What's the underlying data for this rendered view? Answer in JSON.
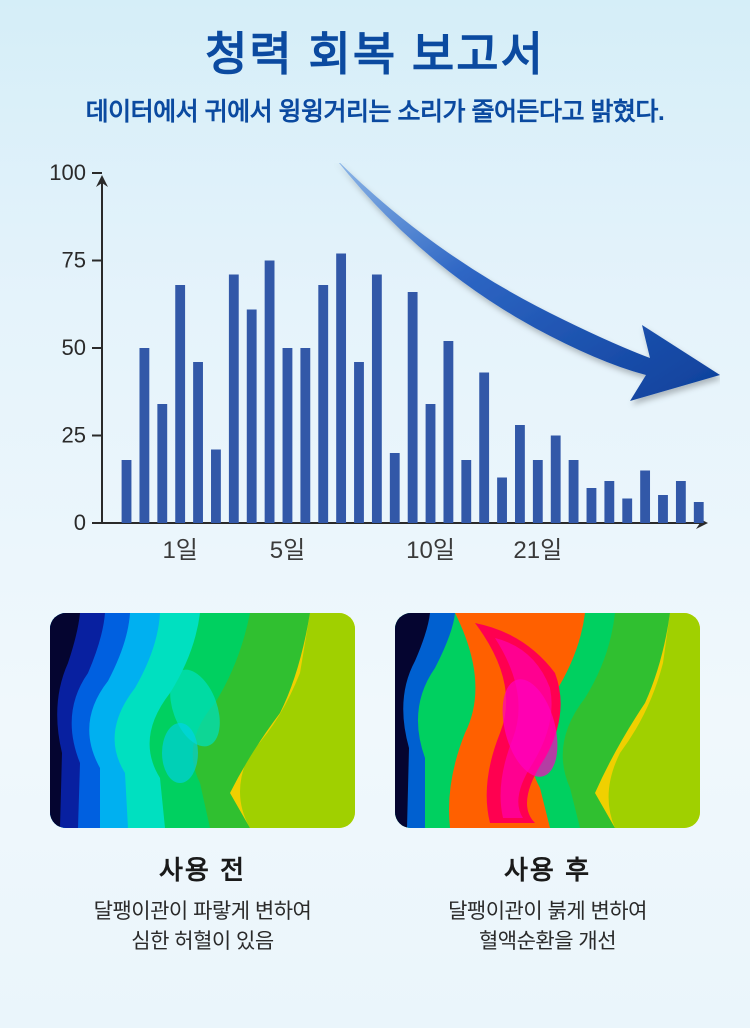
{
  "title": "청력 회복 보고서",
  "subtitle": "데이터에서 귀에서 윙윙거리는 소리가 줄어든다고 밝혔다.",
  "chart": {
    "type": "bar",
    "ylim": [
      0,
      100
    ],
    "yticks": [
      0,
      25,
      50,
      75,
      100
    ],
    "xticks": [
      "1일",
      "5일",
      "10일",
      "21일"
    ],
    "xtick_positions": [
      3,
      9,
      17,
      23
    ],
    "values": [
      18,
      50,
      34,
      68,
      46,
      21,
      71,
      61,
      75,
      50,
      50,
      68,
      77,
      46,
      71,
      20,
      66,
      34,
      52,
      18,
      43,
      13,
      28,
      18,
      25,
      18,
      10,
      12,
      7,
      15,
      8,
      12,
      6
    ],
    "bar_color": "#3258a8",
    "axis_color": "#2a2a2a",
    "tick_color": "#2a2a2a",
    "label_fontsize": 22,
    "bg": "transparent",
    "arrow_color": "#1e56b8",
    "arrow_gradient": [
      "#6fa3e0",
      "#1e56b8",
      "#0d3f9a"
    ]
  },
  "thermal": {
    "before": {
      "label": "사용 전",
      "desc_line1": "달팽이관이 파랗게 변하여",
      "desc_line2": "심한 허혈이 있음"
    },
    "after": {
      "label": "사용 후",
      "desc_line1": "달팽이관이 붉게 변하여",
      "desc_line2": "혈액순환을 개선"
    }
  }
}
